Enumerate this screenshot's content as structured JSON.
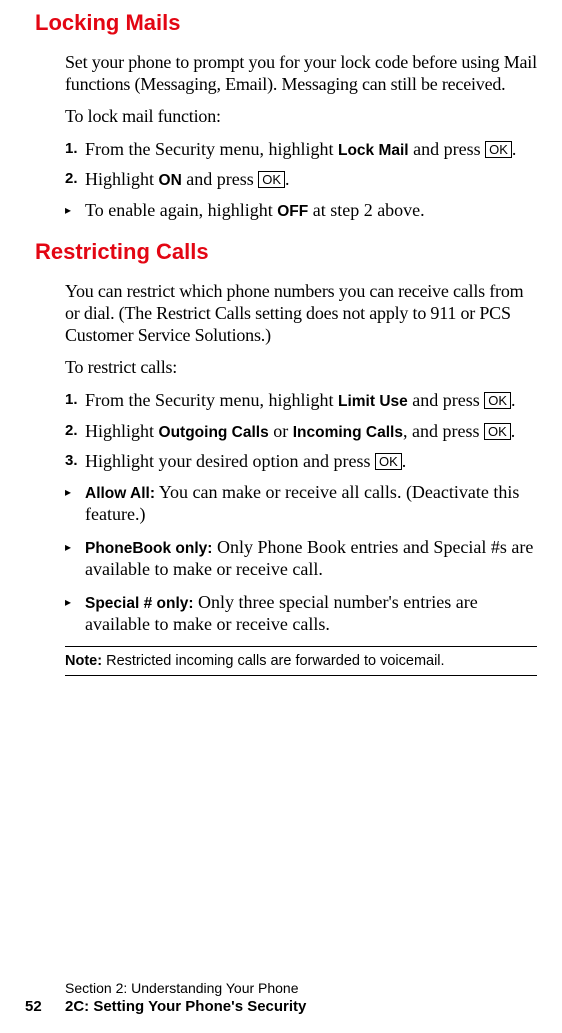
{
  "headings": {
    "h1": "Locking Mails",
    "h2": "Restricting Calls"
  },
  "locking": {
    "intro": "Set your phone to prompt you for your lock code before using Mail functions (Messaging, Email). Messaging can still be received.",
    "lead": "To lock mail function:",
    "step1_a": "From the Security menu, highlight ",
    "step1_bold": "Lock Mail",
    "step1_b": " and press ",
    "step2_a": "Highlight ",
    "step2_bold": "ON",
    "step2_b": " and press ",
    "bullet_a": "To enable again, highlight ",
    "bullet_bold": "OFF",
    "bullet_b": " at step 2 above."
  },
  "restrict": {
    "intro": "You can restrict which phone numbers you can receive calls from or dial. (The Restrict Calls setting does not apply to 911 or PCS Customer Service Solutions.)",
    "lead": "To restrict calls:",
    "step1_a": "From the Security menu, highlight ",
    "step1_bold": "Limit Use",
    "step1_b": " and press ",
    "step2_a": "Highlight ",
    "step2_bold1": "Outgoing Calls",
    "step2_mid": " or ",
    "step2_bold2": "Incoming Calls",
    "step2_b": ", and press ",
    "step3_a": "Highlight your desired option and press ",
    "b1_bold": "Allow All:",
    "b1_text": " You can make or receive all calls. (Deactivate this feature.)",
    "b2_bold": "PhoneBook only:",
    "b2_text": " Only Phone Book entries and Special #s are available to make or receive call.",
    "b3_bold": "Special # only:",
    "b3_text": " Only three special number's entries are available to make or receive calls."
  },
  "ok_label": "OK",
  "period": ".",
  "nums": {
    "n1": "1.",
    "n2": "2.",
    "n3": "3."
  },
  "triangle": "▸",
  "note": {
    "label": "Note:",
    "text": " Restricted incoming calls are forwarded to voicemail."
  },
  "footer": {
    "section": "Section 2: Understanding Your Phone",
    "pagenum": "52",
    "chapter": "2C: Setting Your Phone's Security"
  }
}
